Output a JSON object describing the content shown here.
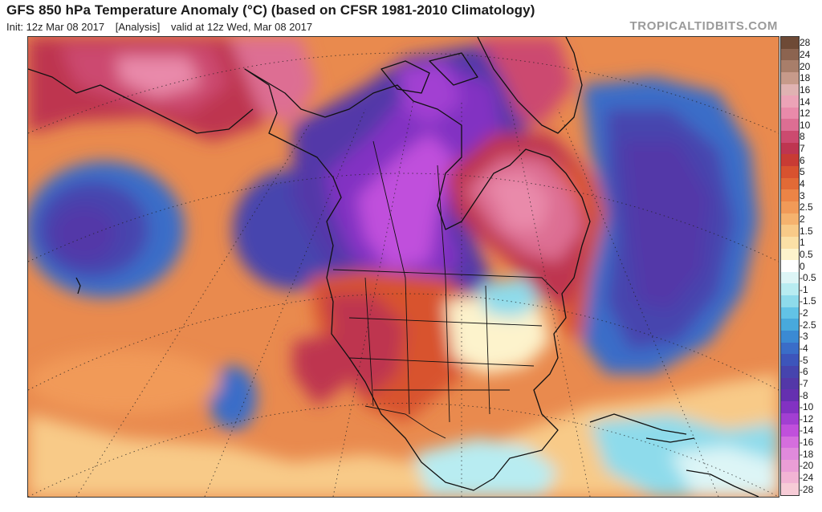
{
  "header": {
    "title": "GFS 850 hPa Temperature Anomaly (°C) (based on CFSR 1981-2010 Climatology)",
    "init": "Init: 12z Mar 08 2017",
    "analysis": "[Analysis]",
    "valid": "valid at 12z Wed, Mar 08 2017",
    "watermark": "TROPICALTIDBITS.COM"
  },
  "colorbar": {
    "labels": [
      "28",
      "24",
      "20",
      "18",
      "16",
      "14",
      "12",
      "10",
      "8",
      "7",
      "6",
      "5",
      "4",
      "3",
      "2.5",
      "2",
      "1.5",
      "1",
      "0.5",
      "0",
      "-0.5",
      "-1",
      "-1.5",
      "-2",
      "-2.5",
      "-3",
      "-4",
      "-5",
      "-6",
      "-7",
      "-8",
      "-10",
      "-12",
      "-14",
      "-16",
      "-18",
      "-20",
      "-24",
      "-28"
    ],
    "colors": [
      "#6e4a36",
      "#8c6450",
      "#a87e6a",
      "#c79a8a",
      "#e0b2b2",
      "#eca3b7",
      "#e98aaa",
      "#dd6e93",
      "#cc4a6f",
      "#be3550",
      "#c83b34",
      "#d8522f",
      "#e26a36",
      "#ec8446",
      "#f19a58",
      "#f5b26e",
      "#f8ca88",
      "#fbe0a6",
      "#fdf3cc",
      "#ffffff",
      "#ddf5f6",
      "#b8ecf1",
      "#8edbeb",
      "#62c3e6",
      "#48a9dc",
      "#3b8ad3",
      "#3a6dc8",
      "#3d55bb",
      "#4644ae",
      "#5338a8",
      "#6530b0",
      "#8232c2",
      "#a23fd2",
      "#c050dc",
      "#d56ede",
      "#e08adc",
      "#ea9ed6",
      "#f2b4d4",
      "#f7ccd7"
    ]
  },
  "map": {
    "region": "North America and adjacent Pacific and Atlantic oceans",
    "palette": {
      "background_warm": "#e98a4e",
      "strong_warm": "#d8522f",
      "very_warm": "#be3550",
      "extreme_warm": "#dd6e93",
      "neutral": "#fdf3cc",
      "mild_cold": "#8edbeb",
      "cold": "#3d55bb",
      "very_cold": "#5338a8",
      "extreme_cold": "#c050dc"
    }
  }
}
